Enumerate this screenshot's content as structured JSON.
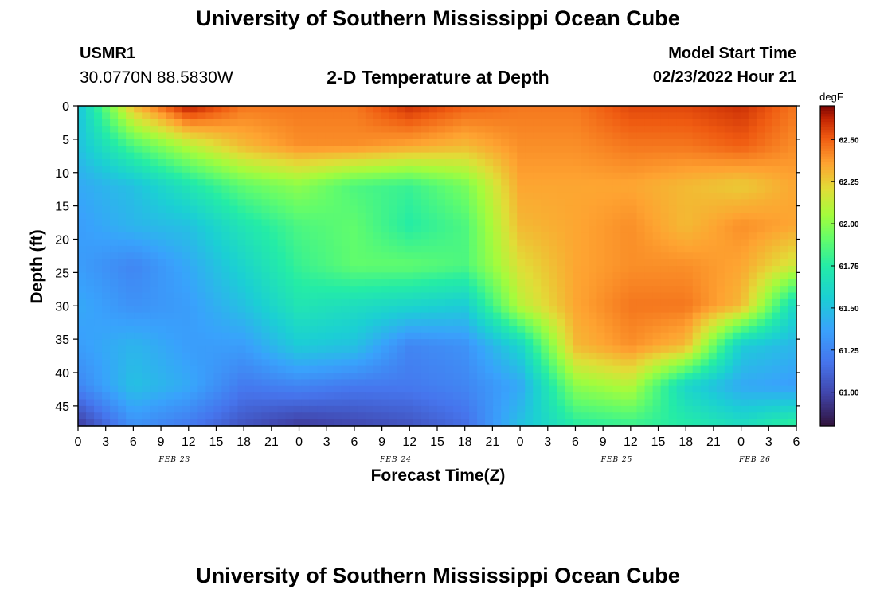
{
  "page": {
    "title": "University of Southern Mississippi Ocean Cube",
    "title_bottom": "University of Southern Mississippi Ocean Cube",
    "station_id": "USMR1",
    "station_coords": "30.0770N  88.5830W",
    "start_label": "Model Start Time",
    "start_value": "02/23/2022 Hour 21"
  },
  "chart_data": {
    "type": "heatmap",
    "title": "2-D Temperature at Depth",
    "xlabel": "Forecast Time(Z)",
    "ylabel": "Depth (ft)",
    "x_tick_labels": [
      "0",
      "3",
      "6",
      "9",
      "12",
      "15",
      "18",
      "21",
      "0",
      "3",
      "6",
      "9",
      "12",
      "15",
      "18",
      "21",
      "0",
      "3",
      "6",
      "9",
      "12",
      "15",
      "18",
      "21",
      "0",
      "3",
      "6"
    ],
    "date_labels": [
      {
        "label": "FEB 23",
        "at_tick": 3.5
      },
      {
        "label": "FEB 24",
        "at_tick": 11.5
      },
      {
        "label": "FEB 25",
        "at_tick": 19.5
      },
      {
        "label": "FEB 26",
        "at_tick": 24.5
      }
    ],
    "y_ticks": [
      0,
      5,
      10,
      15,
      20,
      25,
      30,
      35,
      40,
      45
    ],
    "ylim": [
      48,
      0
    ],
    "colorbar": {
      "unit": "degF",
      "range": [
        60.8,
        62.7
      ],
      "ticks": [
        61.0,
        61.25,
        61.5,
        61.75,
        62.0,
        62.25,
        62.5
      ],
      "tick_labels": [
        "61.00",
        "61.25",
        "61.50",
        "61.75",
        "62.00",
        "62.25",
        "62.50"
      ]
    },
    "hours": [
      0,
      6,
      12,
      18,
      24,
      30,
      36,
      42,
      48,
      54,
      60,
      66,
      72,
      78
    ],
    "depths": [
      0,
      6,
      12,
      18,
      24,
      30,
      36,
      42,
      48
    ],
    "values": [
      [
        61.5,
        62.3,
        62.65,
        62.45,
        62.45,
        62.45,
        62.6,
        62.5,
        62.45,
        62.45,
        62.55,
        62.55,
        62.6,
        62.45
      ],
      [
        61.5,
        61.85,
        62.1,
        62.3,
        62.4,
        62.4,
        62.35,
        62.3,
        62.4,
        62.4,
        62.45,
        62.45,
        62.5,
        62.4
      ],
      [
        61.4,
        61.5,
        61.7,
        61.9,
        62.0,
        61.85,
        61.8,
        61.95,
        62.35,
        62.35,
        62.35,
        62.3,
        62.25,
        62.35
      ],
      [
        61.35,
        61.45,
        61.5,
        61.7,
        61.85,
        61.9,
        61.75,
        61.85,
        62.3,
        62.35,
        62.4,
        62.3,
        62.4,
        62.35
      ],
      [
        61.35,
        61.25,
        61.4,
        61.6,
        61.8,
        61.9,
        61.9,
        61.85,
        62.2,
        62.35,
        62.4,
        62.4,
        62.35,
        62.15
      ],
      [
        61.4,
        61.3,
        61.35,
        61.5,
        61.7,
        61.65,
        61.6,
        61.55,
        62.1,
        62.35,
        62.45,
        62.45,
        62.3,
        61.6
      ],
      [
        61.35,
        61.45,
        61.35,
        61.35,
        61.55,
        61.5,
        61.25,
        61.3,
        61.6,
        62.3,
        62.4,
        62.3,
        61.55,
        61.45
      ],
      [
        61.25,
        61.5,
        61.4,
        61.2,
        61.25,
        61.2,
        61.2,
        61.25,
        61.4,
        62.0,
        62.1,
        61.6,
        61.4,
        61.35
      ],
      [
        60.95,
        61.3,
        61.2,
        61.05,
        60.95,
        61.0,
        61.05,
        61.15,
        61.5,
        61.75,
        61.8,
        61.75,
        61.65,
        61.8
      ]
    ]
  }
}
